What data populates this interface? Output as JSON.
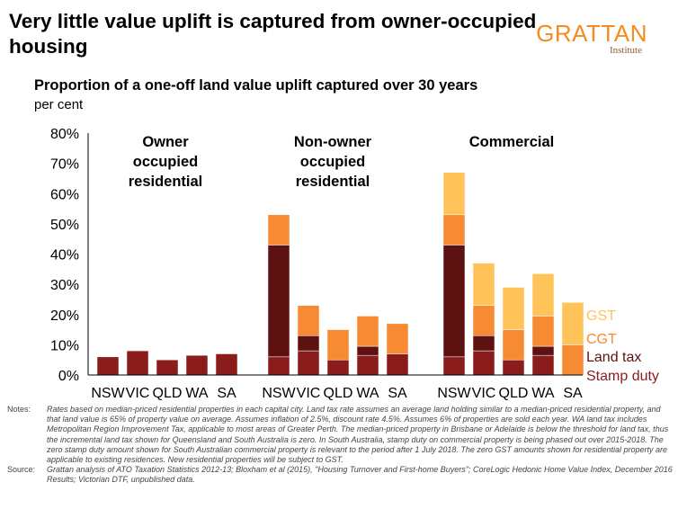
{
  "header": {
    "title": "Very little value uplift is captured from owner-occupied housing",
    "logo_name": "GRATTAN",
    "logo_sub": "Institute"
  },
  "subtitle": "Proportion of a one-off land value uplift captured over 30 years",
  "unit_label": "per cent",
  "chart_data": {
    "type": "bar",
    "stacked": true,
    "ylim": [
      0,
      80
    ],
    "yticks": [
      "0%",
      "10%",
      "20%",
      "30%",
      "40%",
      "50%",
      "60%",
      "70%",
      "80%"
    ],
    "groups": [
      {
        "name": "Owner occupied residential",
        "label_lines": [
          "Owner",
          "occupied",
          "residential"
        ]
      },
      {
        "name": "Non-owner occupied residential",
        "label_lines": [
          "Non-owner",
          "occupied",
          "residential"
        ]
      },
      {
        "name": "Commercial",
        "label_lines": [
          "Commercial"
        ]
      }
    ],
    "categories": [
      "NSW",
      "VIC",
      "QLD",
      "WA",
      "SA"
    ],
    "series": [
      {
        "name": "Stamp duty",
        "color": "#8b1c1c",
        "values": [
          [
            6,
            8,
            5,
            6.5,
            7
          ],
          [
            6,
            8,
            5,
            6.5,
            7
          ],
          [
            6,
            8,
            5,
            6.5,
            0
          ]
        ]
      },
      {
        "name": "Land tax",
        "color": "#5e1111",
        "values": [
          [
            0,
            0,
            0,
            0,
            0
          ],
          [
            37,
            5,
            0,
            3,
            0
          ],
          [
            37,
            5,
            0,
            3,
            0
          ]
        ]
      },
      {
        "name": "CGT",
        "color": "#f68b33",
        "values": [
          [
            0,
            0,
            0,
            0,
            0
          ],
          [
            10,
            10,
            10,
            10,
            10
          ],
          [
            10,
            10,
            10,
            10,
            10
          ]
        ]
      },
      {
        "name": "GST",
        "color": "#ffc35a",
        "values": [
          [
            0,
            0,
            0,
            0,
            0
          ],
          [
            0,
            0,
            0,
            0,
            0
          ],
          [
            14,
            14,
            14,
            14,
            14
          ]
        ]
      }
    ],
    "legend_order": [
      "GST",
      "CGT",
      "Land tax",
      "Stamp duty"
    ]
  },
  "notes": {
    "notes_label": "Notes:",
    "notes_text": "Rates based on median-priced residential properties in each capital city. Land tax rate assumes an average land holding similar to a median-priced residential property, and that land value is 65% of property value on average. Assumes inflation of 2.5%, discount rate 4.5%. Assumes 6% of properties are sold each year. WA land tax includes Metropolitan Region Improvement Tax, applicable to most areas of Greater Perth. The median-priced property in Brisbane or Adelaide is below the threshold for land tax, thus the incremental land tax shown for Queensland and South Australia is zero. In South Australia, stamp duty on commercial property is being phased out over 2015-2018. The zero stamp duty amount shown for South Australian commercial property is relevant to the period after 1 July 2018. The zero GST amounts shown for residential property are applicable to existing residences. New residential properties will be subject to GST.",
    "source_label": "Source:",
    "source_text": "Grattan analysis of ATO Taxation Statistics 2012-13; Bloxham et al (2015), \"Housing Turnover and First-home Buyers\"; CoreLogic Hedonic Home Value Index, December 2016 Results; Victorian DTF, unpublished data."
  }
}
